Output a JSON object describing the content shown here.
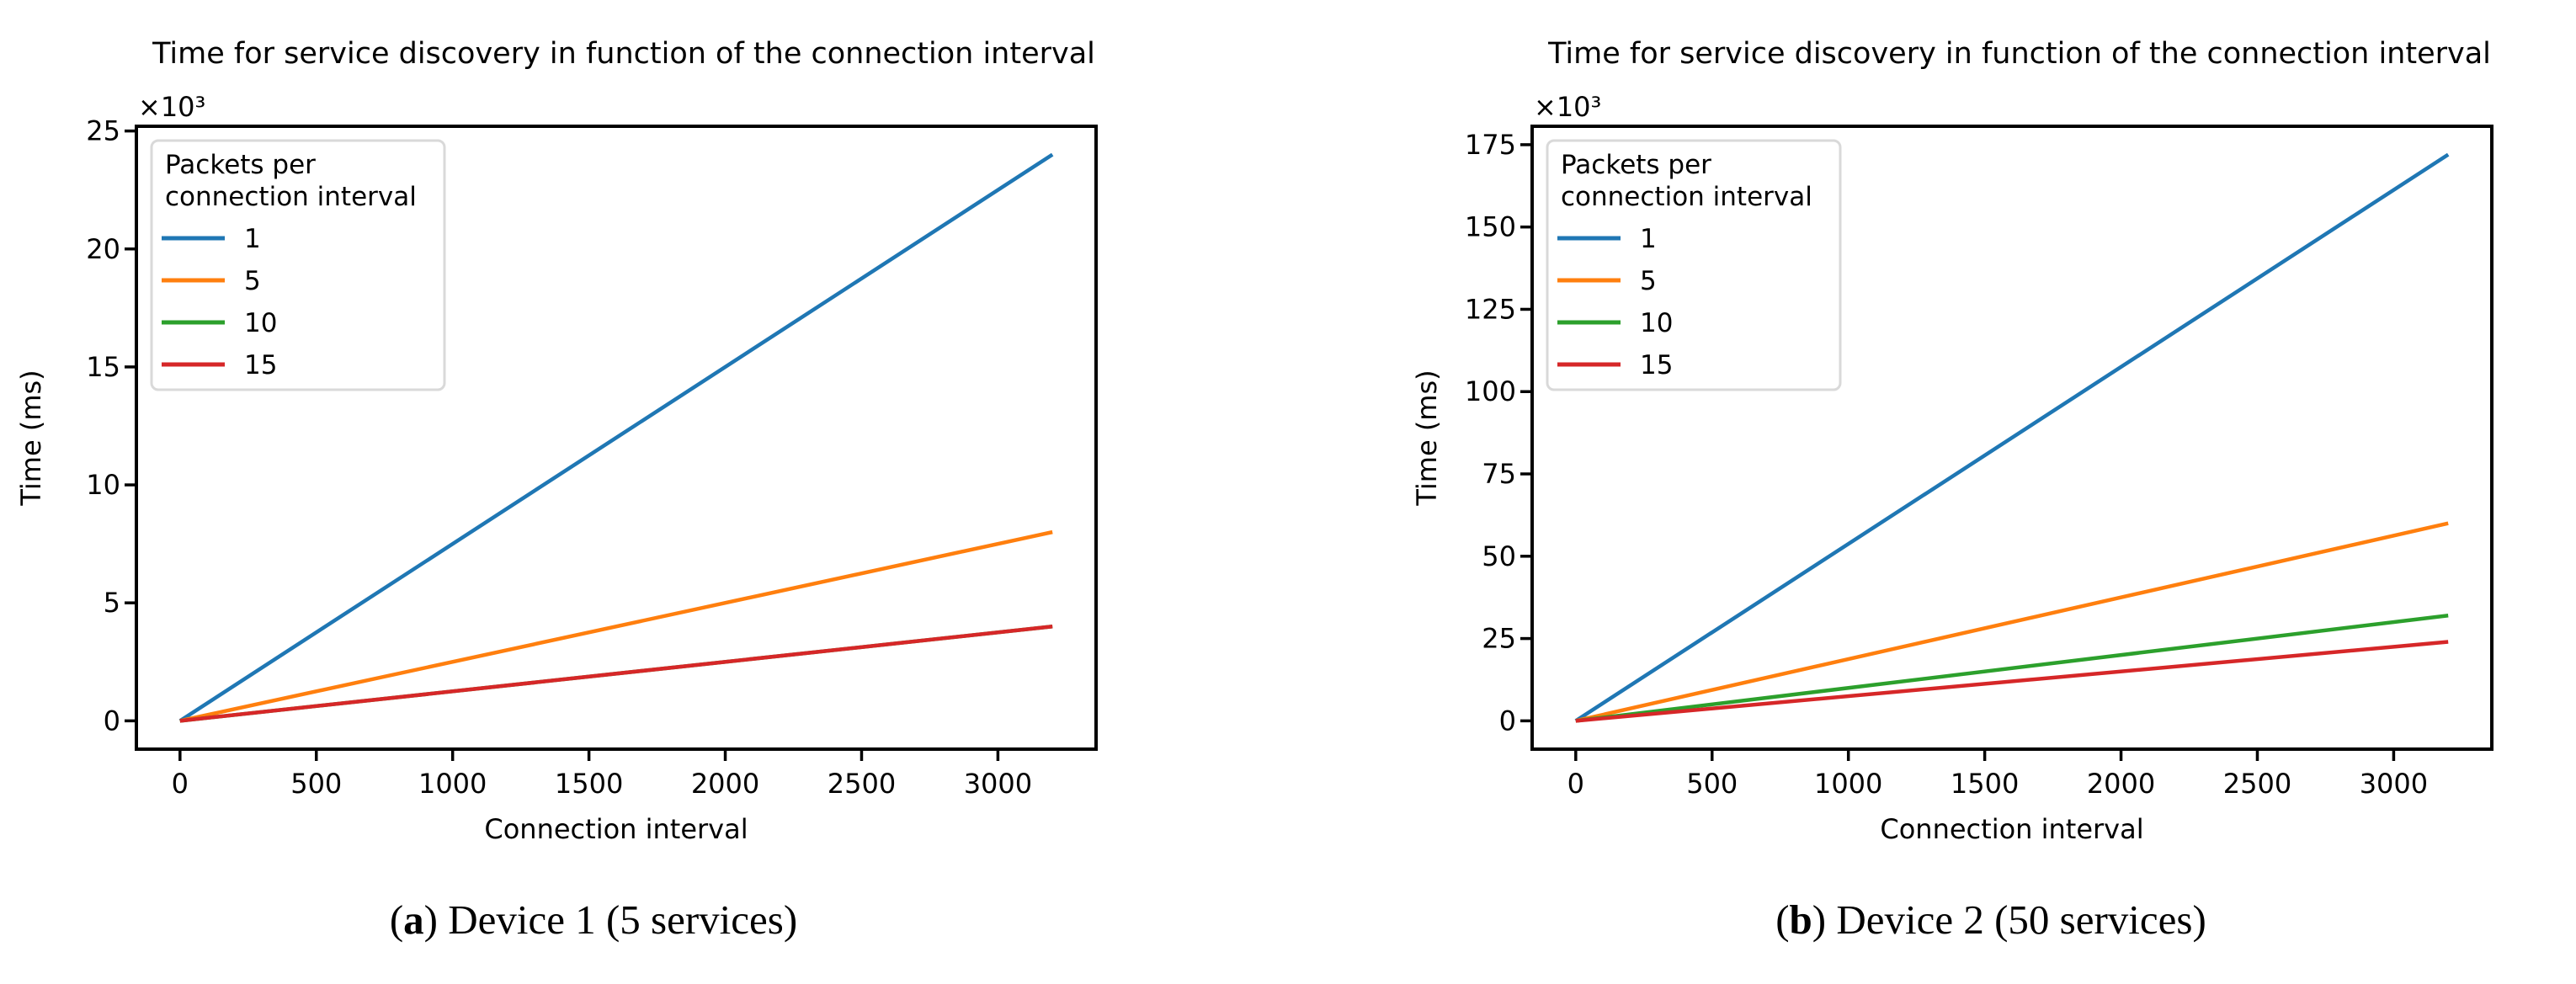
{
  "figure": {
    "captions": [
      {
        "label_open": "(",
        "label_letter": "a",
        "label_close": ") ",
        "text": "Device 1 (5 services)"
      },
      {
        "label_open": "(",
        "label_letter": "b",
        "label_close": ") ",
        "text": "Device 2 (50 services)"
      }
    ]
  },
  "chart_data": [
    {
      "type": "line",
      "title": "Time for service discovery in function of the connection interval",
      "xlabel": "Connection interval",
      "ylabel": "Time (ms)",
      "y_offset_text": "×10³",
      "xlim": [
        -160,
        3360
      ],
      "ylim_ms": [
        -1200,
        25200
      ],
      "x_ticks": [
        0,
        500,
        1000,
        1500,
        2000,
        2500,
        3000
      ],
      "x_tick_labels": [
        "0",
        "500",
        "1000",
        "1500",
        "2000",
        "2500",
        "3000"
      ],
      "y_ticks_ms": [
        0,
        5000,
        10000,
        15000,
        20000,
        25000
      ],
      "y_tick_labels": [
        "0",
        "5",
        "10",
        "15",
        "20",
        "25"
      ],
      "grid": false,
      "legend": {
        "title_lines": [
          "Packets per",
          "connection interval"
        ],
        "position": "upper left",
        "entries": [
          {
            "label": "1",
            "color": "#1f77b4"
          },
          {
            "label": "5",
            "color": "#ff7f0e"
          },
          {
            "label": "10",
            "color": "#2ca02c"
          },
          {
            "label": "15",
            "color": "#d62728"
          }
        ]
      },
      "series": [
        {
          "name": "1",
          "color": "#1f77b4",
          "x": [
            0,
            3200
          ],
          "y_ms": [
            0,
            24000
          ]
        },
        {
          "name": "5",
          "color": "#ff7f0e",
          "x": [
            0,
            3200
          ],
          "y_ms": [
            0,
            8000
          ]
        },
        {
          "name": "10",
          "color": "#2ca02c",
          "x": [
            0,
            3200
          ],
          "y_ms": [
            0,
            4000
          ]
        },
        {
          "name": "15",
          "color": "#d62728",
          "x": [
            0,
            3200
          ],
          "y_ms": [
            0,
            4000
          ]
        }
      ]
    },
    {
      "type": "line",
      "title": "Time for service discovery in function of the connection interval",
      "xlabel": "Connection interval",
      "ylabel": "Time (ms)",
      "y_offset_text": "×10³",
      "xlim": [
        -160,
        3360
      ],
      "ylim_ms": [
        -8600,
        180600
      ],
      "x_ticks": [
        0,
        500,
        1000,
        1500,
        2000,
        2500,
        3000
      ],
      "x_tick_labels": [
        "0",
        "500",
        "1000",
        "1500",
        "2000",
        "2500",
        "3000"
      ],
      "y_ticks_ms": [
        0,
        25000,
        50000,
        75000,
        100000,
        125000,
        150000,
        175000
      ],
      "y_tick_labels": [
        "0",
        "25",
        "50",
        "75",
        "100",
        "125",
        "150",
        "175"
      ],
      "grid": false,
      "legend": {
        "title_lines": [
          "Packets per",
          "connection interval"
        ],
        "position": "upper left",
        "entries": [
          {
            "label": "1",
            "color": "#1f77b4"
          },
          {
            "label": "5",
            "color": "#ff7f0e"
          },
          {
            "label": "10",
            "color": "#2ca02c"
          },
          {
            "label": "15",
            "color": "#d62728"
          }
        ]
      },
      "series": [
        {
          "name": "1",
          "color": "#1f77b4",
          "x": [
            0,
            3200
          ],
          "y_ms": [
            0,
            172000
          ]
        },
        {
          "name": "5",
          "color": "#ff7f0e",
          "x": [
            0,
            3200
          ],
          "y_ms": [
            0,
            60000
          ]
        },
        {
          "name": "10",
          "color": "#2ca02c",
          "x": [
            0,
            3200
          ],
          "y_ms": [
            0,
            32000
          ]
        },
        {
          "name": "15",
          "color": "#d62728",
          "x": [
            0,
            3200
          ],
          "y_ms": [
            0,
            24000
          ]
        }
      ]
    }
  ],
  "style": {
    "axis_color": "#000000",
    "legend_border_color": "#d9d9d9",
    "background": "#ffffff"
  }
}
